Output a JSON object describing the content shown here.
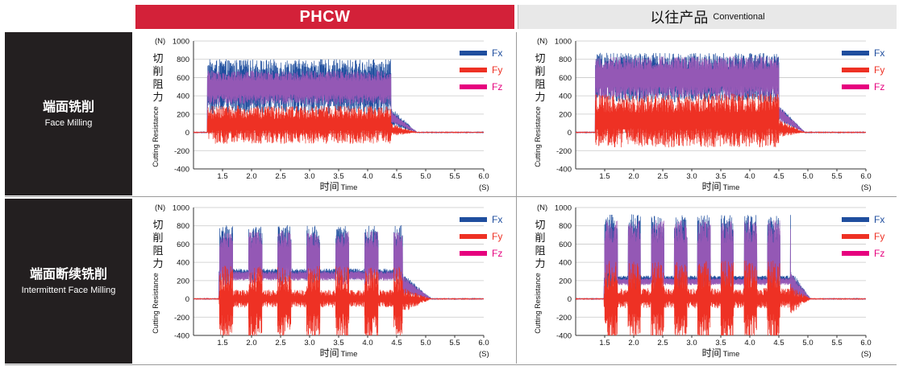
{
  "header": {
    "phcw": "PHCW",
    "conventional_zh": "以往产品",
    "conventional_en": "Conventional"
  },
  "rows": [
    {
      "zh": "端面铣削",
      "en": "Face Milling"
    },
    {
      "zh": "端面断续铣削",
      "en": "Intermittent Face Milling"
    }
  ],
  "axis": {
    "unit_y": "(N)",
    "ylabel_zh": "切削阻力",
    "ylabel_en": "Cutting Resistance",
    "xlabel_zh": "时间",
    "xlabel_en": "Time",
    "unit_x": "(S)"
  },
  "colors": {
    "Fx": "#1f4e9e",
    "Fy": "#ee3124",
    "Fz": "#e6007e",
    "overlap": "#9b59b6"
  },
  "chart_data": [
    {
      "type": "line",
      "panel": "PHCW – Face Milling",
      "mode": "continuous",
      "xlim": [
        1.0,
        6.0
      ],
      "ylim": [
        -400,
        1000
      ],
      "xticks": [
        "1.5",
        "2.0",
        "2.5",
        "3.0",
        "3.5",
        "4.0",
        "4.5",
        "5.0",
        "5.5",
        "6.0"
      ],
      "yticks": [
        "1000",
        "800",
        "600",
        "400",
        "200",
        "0",
        "-200",
        "-400"
      ],
      "cut_start": 1.25,
      "cut_end": 4.4,
      "tail_end": 4.85,
      "series": [
        {
          "name": "Fx",
          "peak": 700,
          "low": 300
        },
        {
          "name": "Fy",
          "peak": 220,
          "low": -50
        },
        {
          "name": "Fz",
          "peak": 620,
          "low": 360
        }
      ]
    },
    {
      "type": "line",
      "panel": "以往产品 Conventional – Face Milling",
      "mode": "continuous",
      "xlim": [
        1.0,
        6.0
      ],
      "ylim": [
        -400,
        1000
      ],
      "xticks": [
        "1.5",
        "2.0",
        "2.5",
        "3.0",
        "3.5",
        "4.0",
        "4.5",
        "5.0",
        "5.5",
        "6.0"
      ],
      "yticks": [
        "1000",
        "800",
        "600",
        "400",
        "200",
        "0",
        "-200",
        "-400"
      ],
      "cut_start": 1.35,
      "cut_end": 4.5,
      "tail_end": 4.95,
      "series": [
        {
          "name": "Fx",
          "peak": 780,
          "low": 420
        },
        {
          "name": "Fy",
          "peak": 320,
          "low": -60
        },
        {
          "name": "Fz",
          "peak": 760,
          "low": 430
        }
      ]
    },
    {
      "type": "line",
      "panel": "PHCW – Intermittent Face Milling",
      "mode": "intermittent",
      "xlim": [
        1.0,
        6.0
      ],
      "ylim": [
        -400,
        1000
      ],
      "xticks": [
        "1.5",
        "2.0",
        "2.5",
        "3.0",
        "3.5",
        "4.0",
        "4.5",
        "5.0",
        "5.5",
        "6.0"
      ],
      "yticks": [
        "1000",
        "800",
        "600",
        "400",
        "200",
        "0",
        "-200",
        "-400"
      ],
      "cut_start": 1.45,
      "cut_end": 4.6,
      "tail_end": 5.1,
      "period": 0.5,
      "duty": 0.46,
      "series": [
        {
          "name": "Fx",
          "peak": 700,
          "low": 260
        },
        {
          "name": "Fy",
          "peak": 220,
          "low": -300
        },
        {
          "name": "Fz",
          "peak": 650,
          "low": 240
        }
      ]
    },
    {
      "type": "line",
      "panel": "以往产品 Conventional – Intermittent Face Milling",
      "mode": "intermittent",
      "xlim": [
        1.0,
        6.0
      ],
      "ylim": [
        -400,
        1000
      ],
      "xticks": [
        "1.5",
        "2.0",
        "2.5",
        "3.0",
        "3.5",
        "4.0",
        "4.5",
        "5.0",
        "5.5",
        "6.0"
      ],
      "yticks": [
        "1000",
        "800",
        "600",
        "400",
        "200",
        "0",
        "-200",
        "-400"
      ],
      "cut_start": 1.5,
      "cut_end": 4.7,
      "tail_end": 5.05,
      "period": 0.4,
      "duty": 0.55,
      "series": [
        {
          "name": "Fx",
          "peak": 780,
          "low": 200
        },
        {
          "name": "Fy",
          "peak": 260,
          "low": -320
        },
        {
          "name": "Fz",
          "peak": 740,
          "low": 180
        }
      ]
    }
  ]
}
